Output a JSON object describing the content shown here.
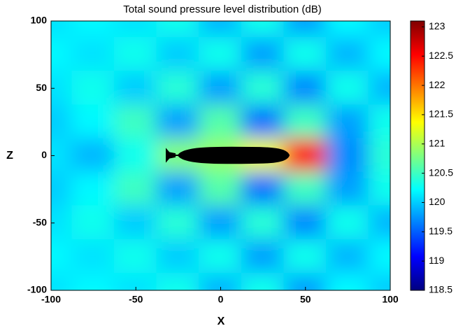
{
  "chart_data": {
    "type": "heatmap",
    "title": "Total sound pressure level distribution (dB)",
    "x_label": "X",
    "y_label": "Z",
    "x": [
      -100,
      -75,
      -50,
      -25,
      0,
      25,
      50,
      75,
      100
    ],
    "y": [
      100,
      75,
      50,
      25,
      0,
      -25,
      -50,
      -75,
      -100
    ],
    "z": [
      [
        120.1,
        120.2,
        120.1,
        120.3,
        119.9,
        120.3,
        119.8,
        120.2,
        120.0
      ],
      [
        120.2,
        120.1,
        120.3,
        120.0,
        120.3,
        119.8,
        120.3,
        119.9,
        120.2
      ],
      [
        120.1,
        120.3,
        120.0,
        120.4,
        119.8,
        120.4,
        119.7,
        120.3,
        119.9
      ],
      [
        120.0,
        120.2,
        120.5,
        119.8,
        120.6,
        119.6,
        120.5,
        119.8,
        120.3
      ],
      [
        120.1,
        119.9,
        120.3,
        120.8,
        120.9,
        121.3,
        122.5,
        119.7,
        120.4
      ],
      [
        120.0,
        120.2,
        120.5,
        119.8,
        120.6,
        119.6,
        120.5,
        119.8,
        120.3
      ],
      [
        120.1,
        120.3,
        120.0,
        120.4,
        119.8,
        120.4,
        119.7,
        120.3,
        119.9
      ],
      [
        120.2,
        120.1,
        120.3,
        120.0,
        120.3,
        119.8,
        120.3,
        119.9,
        120.2
      ],
      [
        120.1,
        120.2,
        120.1,
        120.3,
        119.9,
        120.3,
        119.8,
        120.2,
        120.0
      ]
    ],
    "xlim": [
      -100,
      100
    ],
    "ylim": [
      -100,
      100
    ],
    "xticks": [
      -100,
      -50,
      0,
      50,
      100
    ],
    "yticks": [
      -100,
      -50,
      0,
      50,
      100
    ],
    "clim": [
      118.5,
      123.1
    ],
    "cticks": [
      118.5,
      119,
      119.5,
      120,
      120.5,
      121,
      121.5,
      122,
      122.5,
      123
    ],
    "colormap": "jet"
  }
}
